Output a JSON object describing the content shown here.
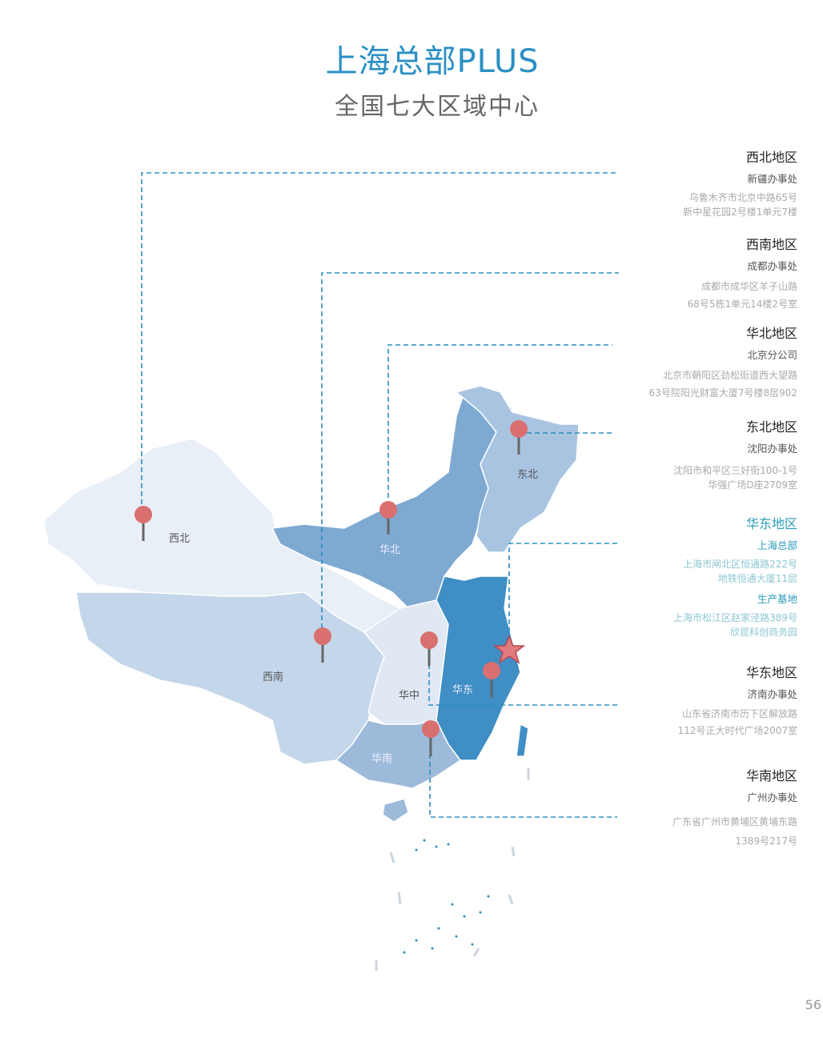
{
  "header": {
    "title": "上海总部PLUS",
    "subtitle": "全国七大区域中心"
  },
  "map": {
    "region_labels": [
      "西北",
      "西南",
      "华北",
      "东北",
      "华中",
      "华东",
      "华南"
    ],
    "colors": {
      "dashed_line": "#2b8dc0",
      "pin": "#d9706f",
      "star": "#e07a7f",
      "northwest": "#e9eff6",
      "southwest": "#c4d6e9",
      "north": "#7ea9d1",
      "northeast": "#a8c4e1",
      "central": "#dfe8f3",
      "east": "#3f8ec5",
      "south": "#9dbada"
    }
  },
  "offices": [
    {
      "region": "西北地区",
      "name": "新疆办事处",
      "address": [
        "乌鲁木齐市北京中路65号",
        "新中星花园2号楼1单元7楼"
      ]
    },
    {
      "region": "西南地区",
      "name": "成都办事处",
      "address": [
        "成都市成华区羊子山路",
        "68号5栋1单元14楼2号室"
      ]
    },
    {
      "region": "华北地区",
      "name": "北京分公司",
      "address": [
        "北京市朝阳区劲松街道西大望路",
        "63号院阳光财富大厦7号楼8层902"
      ]
    },
    {
      "region": "东北地区",
      "name": "沈阳办事处",
      "address": [
        "沈阳市和平区三好街100-1号",
        "华强广场D座2709室"
      ]
    },
    {
      "region": "华东地区",
      "name": "上海总部",
      "address": [
        "上海市闸北区恒通路222号",
        "地铁恒通大厦11层"
      ],
      "name2": "生产基地",
      "address2": [
        "上海市松江区赵家泾路389号",
        "欣昆科创商务园"
      ]
    },
    {
      "region": "华东地区",
      "name": "济南办事处",
      "address": [
        "山东省济南市历下区解放路",
        "112号正大时代广场2007室"
      ]
    },
    {
      "region": "华南地区",
      "name": "广州办事处",
      "address": [
        "广东省广州市黄埔区黄埔东路",
        "1389号217号"
      ]
    }
  ],
  "page_number": "56"
}
